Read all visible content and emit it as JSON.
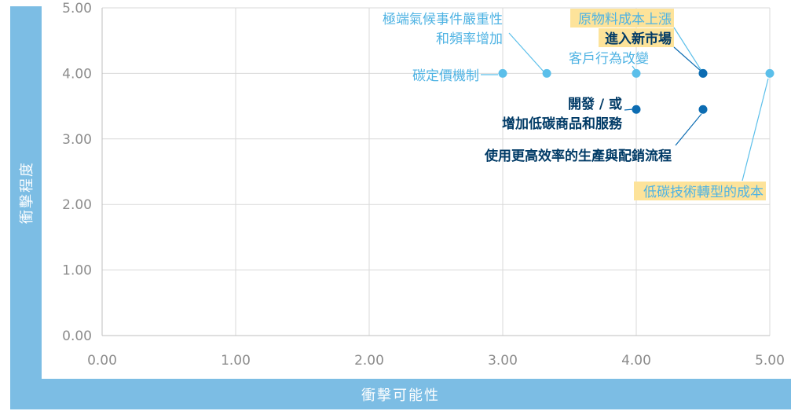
{
  "chart_data": {
    "type": "scatter",
    "xlabel": "衝擊可能性",
    "ylabel": "衝擊程度",
    "xlim": [
      0,
      5
    ],
    "ylim": [
      0,
      5
    ],
    "x_ticks": [
      "0.00",
      "1.00",
      "2.00",
      "3.00",
      "4.00",
      "5.00"
    ],
    "y_ticks": [
      "0.00",
      "1.00",
      "2.00",
      "3.00",
      "4.00",
      "5.00"
    ],
    "grid": true,
    "colors": {
      "light_point": "#5bbfea",
      "dark_point": "#0c6cb2",
      "light_text": "#4fb3e3",
      "dark_text": "#003a66",
      "highlight": "#fde39a",
      "axis_box": "#7cbde4",
      "grid": "#d9d9d9"
    },
    "points": [
      {
        "x": 3.0,
        "y": 4.0,
        "lines": [
          "碳定價機制"
        ],
        "style": "light",
        "highlight": false
      },
      {
        "x": 3.33,
        "y": 4.0,
        "lines": [
          "極端氣候事件嚴重性",
          "和頻率增加"
        ],
        "style": "light",
        "highlight": false
      },
      {
        "x": 4.0,
        "y": 4.0,
        "lines": [
          "客戶行為改變"
        ],
        "style": "light",
        "highlight": false
      },
      {
        "x": 4.5,
        "y": 4.0,
        "lines": [
          "原物料成本上漲"
        ],
        "style": "light",
        "highlight": true
      },
      {
        "x": 4.5,
        "y": 4.0,
        "lines": [
          "進入新市場"
        ],
        "style": "dark",
        "highlight": true
      },
      {
        "x": 4.0,
        "y": 3.45,
        "lines": [
          "開發 / 或",
          "增加低碳商品和服務"
        ],
        "style": "dark",
        "highlight": false
      },
      {
        "x": 4.5,
        "y": 3.45,
        "lines": [
          "使用更高效率的生產與配銷流程"
        ],
        "style": "dark",
        "highlight": false
      },
      {
        "x": 5.0,
        "y": 4.0,
        "lines": [
          "低碳技術轉型的成本"
        ],
        "style": "light",
        "highlight": true
      }
    ]
  }
}
